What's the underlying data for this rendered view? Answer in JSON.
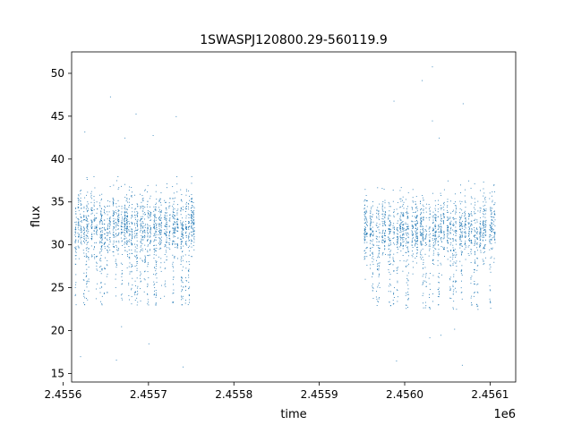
{
  "chart_data": {
    "type": "scatter",
    "title": "1SWASPJ120800.29-560119.9",
    "xlabel": "time",
    "ylabel": "flux",
    "x_offset_label": "1e6",
    "xlim": [
      2.45561,
      2.45613
    ],
    "ylim": [
      14.0,
      52.5
    ],
    "x_ticks": [
      2.4556,
      2.4557,
      2.4558,
      2.4559,
      2.456,
      2.4561
    ],
    "x_tick_labels": [
      "2.4556",
      "2.4557",
      "2.4558",
      "2.4559",
      "2.4560",
      "2.4561"
    ],
    "y_ticks": [
      15,
      20,
      25,
      30,
      35,
      40,
      45,
      50
    ],
    "y_tick_labels": [
      "15",
      "20",
      "25",
      "30",
      "35",
      "40",
      "45",
      "50"
    ],
    "grid": false,
    "marker_color": "#1f77b4",
    "series": [
      {
        "x_range": [
          2.455613,
          2.455755
        ],
        "center": 32.5,
        "spread_low": 23.0,
        "spread_high": 38.0,
        "outliers": [
          [
            2.455625,
            43.2
          ],
          [
            2.455655,
            47.3
          ],
          [
            2.455672,
            42.5
          ],
          [
            2.455685,
            45.3
          ],
          [
            2.455705,
            42.8
          ],
          [
            2.455732,
            45.0
          ],
          [
            2.455668,
            20.5
          ],
          [
            2.455662,
            16.6
          ],
          [
            2.4557,
            18.5
          ],
          [
            2.45562,
            17.0
          ],
          [
            2.45574,
            15.8
          ]
        ]
      },
      {
        "x_range": [
          2.455951,
          2.456108
        ],
        "center": 32.0,
        "spread_low": 22.5,
        "spread_high": 37.5,
        "outliers": [
          [
            2.456032,
            50.8
          ],
          [
            2.45602,
            49.2
          ],
          [
            2.455987,
            46.8
          ],
          [
            2.456068,
            46.5
          ],
          [
            2.456032,
            44.5
          ],
          [
            2.45599,
            16.5
          ],
          [
            2.456029,
            19.2
          ],
          [
            2.456067,
            16.0
          ],
          [
            2.456042,
            19.5
          ],
          [
            2.456058,
            20.2
          ],
          [
            2.45604,
            42.5
          ]
        ]
      }
    ]
  }
}
